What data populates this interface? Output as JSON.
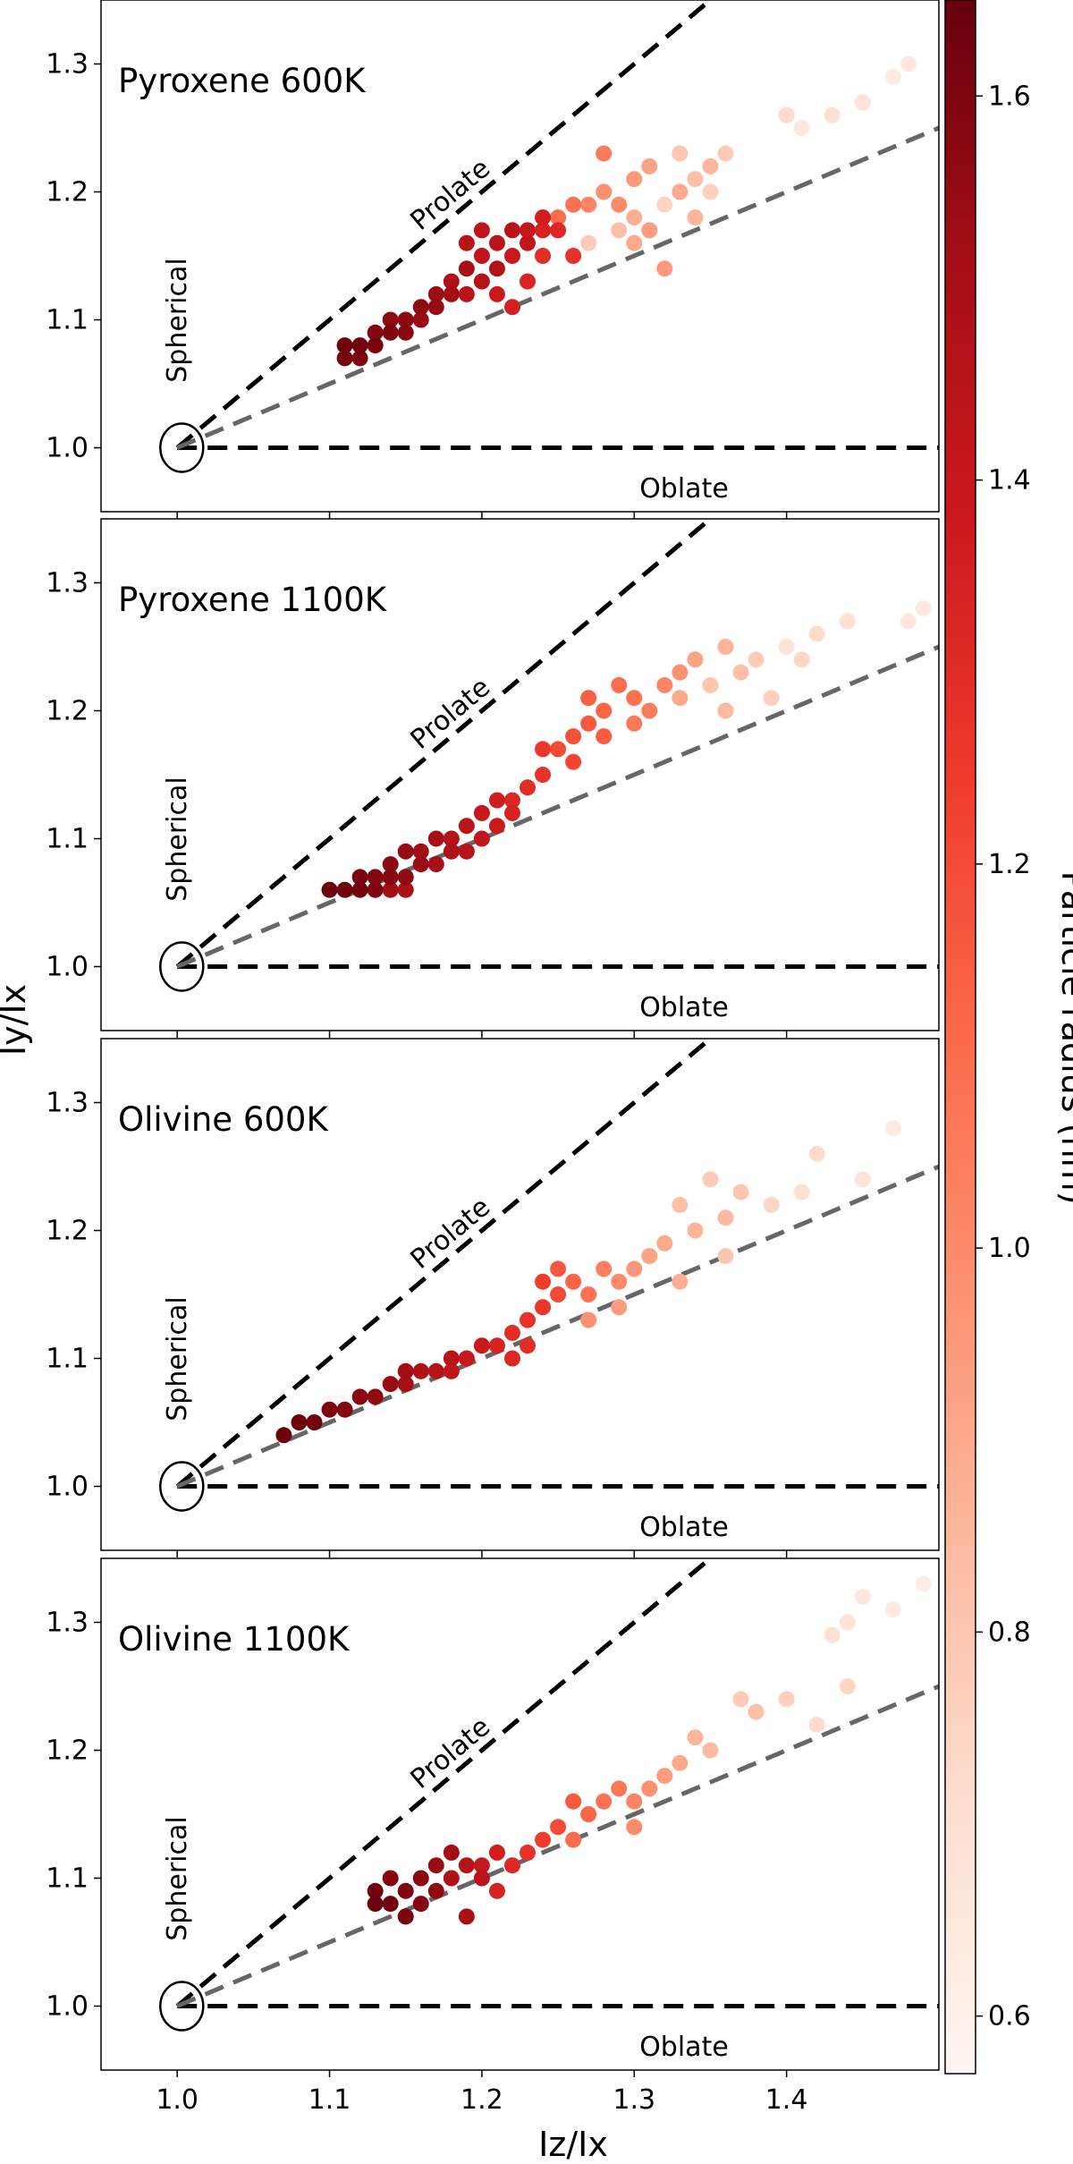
{
  "chart_data": {
    "type": "scatter",
    "xlabel": "Iz/Ix",
    "ylabel": "Iy/Ix",
    "xlim": [
      0.95,
      1.5
    ],
    "ylim": [
      0.95,
      1.35
    ],
    "xticks": [
      "1.0",
      "1.1",
      "1.2",
      "1.3",
      "1.4"
    ],
    "yticks": [
      "1.0",
      "1.1",
      "1.2",
      "1.3"
    ],
    "guide_lines": [
      {
        "name": "prolate-line",
        "slope_type": "Iy=Iz",
        "style": "dashed",
        "color": "#000000"
      },
      {
        "name": "oblate-line",
        "slope_type": "Iy=1",
        "style": "dashed",
        "color": "#000000"
      },
      {
        "name": "middle-line",
        "slope_type": "Iy=(1+Iz)/2",
        "style": "dashed",
        "color": "#666666"
      }
    ],
    "annotations": {
      "prolate": "Prolate",
      "oblate": "Oblate",
      "spherical": "Spherical"
    },
    "colorbar": {
      "label": "Particle radius (nm)",
      "range": [
        0.57,
        1.65
      ],
      "ticks": [
        "0.6",
        "0.8",
        "1.0",
        "1.2",
        "1.4",
        "1.6"
      ],
      "colormap": "Reds"
    },
    "panels": [
      {
        "title": "Pyroxene 600K",
        "points": [
          [
            1.48,
            1.3,
            0.66
          ],
          [
            1.47,
            1.29,
            0.64
          ],
          [
            1.45,
            1.27,
            0.68
          ],
          [
            1.43,
            1.26,
            0.7
          ],
          [
            1.41,
            1.25,
            0.66
          ],
          [
            1.4,
            1.26,
            0.72
          ],
          [
            1.36,
            1.23,
            0.78
          ],
          [
            1.35,
            1.22,
            0.85
          ],
          [
            1.34,
            1.21,
            0.82
          ],
          [
            1.33,
            1.23,
            0.8
          ],
          [
            1.33,
            1.2,
            0.9
          ],
          [
            1.32,
            1.19,
            0.75
          ],
          [
            1.31,
            1.22,
            0.92
          ],
          [
            1.3,
            1.21,
            0.95
          ],
          [
            1.3,
            1.18,
            0.88
          ],
          [
            1.29,
            1.17,
            0.82
          ],
          [
            1.28,
            1.23,
            1.05
          ],
          [
            1.28,
            1.2,
            0.98
          ],
          [
            1.27,
            1.19,
            1.02
          ],
          [
            1.27,
            1.16,
            0.78
          ],
          [
            1.26,
            1.19,
            1.08
          ],
          [
            1.25,
            1.18,
            1.1
          ],
          [
            1.32,
            1.14,
            0.95
          ],
          [
            1.3,
            1.16,
            0.9
          ],
          [
            1.34,
            1.18,
            0.86
          ],
          [
            1.35,
            1.2,
            0.76
          ],
          [
            1.29,
            1.19,
            1.0
          ],
          [
            1.31,
            1.17,
            0.94
          ],
          [
            1.24,
            1.18,
            1.36
          ],
          [
            1.23,
            1.17,
            1.4
          ],
          [
            1.23,
            1.16,
            1.42
          ],
          [
            1.22,
            1.17,
            1.45
          ],
          [
            1.22,
            1.15,
            1.38
          ],
          [
            1.21,
            1.16,
            1.44
          ],
          [
            1.21,
            1.14,
            1.47
          ],
          [
            1.2,
            1.15,
            1.43
          ],
          [
            1.2,
            1.13,
            1.46
          ],
          [
            1.19,
            1.14,
            1.5
          ],
          [
            1.19,
            1.12,
            1.44
          ],
          [
            1.18,
            1.13,
            1.48
          ],
          [
            1.18,
            1.12,
            1.52
          ],
          [
            1.17,
            1.12,
            1.53
          ],
          [
            1.17,
            1.11,
            1.55
          ],
          [
            1.16,
            1.11,
            1.56
          ],
          [
            1.16,
            1.1,
            1.54
          ],
          [
            1.15,
            1.1,
            1.57
          ],
          [
            1.15,
            1.09,
            1.58
          ],
          [
            1.14,
            1.09,
            1.6
          ],
          [
            1.14,
            1.1,
            1.56
          ],
          [
            1.13,
            1.08,
            1.61
          ],
          [
            1.13,
            1.09,
            1.59
          ],
          [
            1.12,
            1.08,
            1.62
          ],
          [
            1.12,
            1.07,
            1.6
          ],
          [
            1.11,
            1.08,
            1.63
          ],
          [
            1.11,
            1.07,
            1.62
          ],
          [
            1.21,
            1.12,
            1.38
          ],
          [
            1.22,
            1.11,
            1.35
          ],
          [
            1.23,
            1.13,
            1.33
          ],
          [
            1.24,
            1.15,
            1.3
          ],
          [
            1.2,
            1.17,
            1.42
          ],
          [
            1.19,
            1.16,
            1.45
          ],
          [
            1.24,
            1.17,
            1.34
          ],
          [
            1.25,
            1.17,
            1.32
          ],
          [
            1.26,
            1.15,
            1.28
          ]
        ]
      },
      {
        "title": "Pyroxene 1100K",
        "points": [
          [
            1.49,
            1.28,
            0.64
          ],
          [
            1.48,
            1.27,
            0.66
          ],
          [
            1.44,
            1.27,
            0.7
          ],
          [
            1.42,
            1.26,
            0.72
          ],
          [
            1.41,
            1.24,
            0.74
          ],
          [
            1.4,
            1.25,
            0.68
          ],
          [
            1.38,
            1.24,
            0.78
          ],
          [
            1.37,
            1.23,
            0.82
          ],
          [
            1.36,
            1.25,
            0.86
          ],
          [
            1.35,
            1.22,
            0.8
          ],
          [
            1.34,
            1.24,
            0.92
          ],
          [
            1.33,
            1.23,
            0.98
          ],
          [
            1.33,
            1.21,
            0.9
          ],
          [
            1.32,
            1.22,
            1.02
          ],
          [
            1.31,
            1.2,
            1.05
          ],
          [
            1.3,
            1.21,
            1.08
          ],
          [
            1.29,
            1.22,
            1.1
          ],
          [
            1.28,
            1.2,
            1.12
          ],
          [
            1.27,
            1.21,
            1.14
          ],
          [
            1.27,
            1.19,
            1.16
          ],
          [
            1.26,
            1.18,
            1.18
          ],
          [
            1.25,
            1.17,
            1.2
          ],
          [
            1.24,
            1.17,
            1.26
          ],
          [
            1.24,
            1.15,
            1.28
          ],
          [
            1.23,
            1.14,
            1.3
          ],
          [
            1.22,
            1.13,
            1.32
          ],
          [
            1.22,
            1.12,
            1.34
          ],
          [
            1.21,
            1.13,
            1.36
          ],
          [
            1.21,
            1.11,
            1.38
          ],
          [
            1.2,
            1.12,
            1.4
          ],
          [
            1.2,
            1.1,
            1.42
          ],
          [
            1.19,
            1.11,
            1.44
          ],
          [
            1.19,
            1.09,
            1.45
          ],
          [
            1.18,
            1.1,
            1.47
          ],
          [
            1.18,
            1.09,
            1.48
          ],
          [
            1.17,
            1.1,
            1.5
          ],
          [
            1.17,
            1.08,
            1.51
          ],
          [
            1.16,
            1.09,
            1.52
          ],
          [
            1.16,
            1.08,
            1.54
          ],
          [
            1.15,
            1.09,
            1.55
          ],
          [
            1.15,
            1.07,
            1.56
          ],
          [
            1.14,
            1.08,
            1.57
          ],
          [
            1.14,
            1.07,
            1.58
          ],
          [
            1.13,
            1.07,
            1.59
          ],
          [
            1.13,
            1.06,
            1.6
          ],
          [
            1.12,
            1.07,
            1.61
          ],
          [
            1.12,
            1.06,
            1.62
          ],
          [
            1.11,
            1.06,
            1.63
          ],
          [
            1.1,
            1.06,
            1.64
          ],
          [
            1.14,
            1.06,
            1.52
          ],
          [
            1.15,
            1.06,
            1.49
          ],
          [
            1.26,
            1.16,
            1.22
          ],
          [
            1.28,
            1.18,
            1.15
          ],
          [
            1.3,
            1.19,
            1.06
          ],
          [
            1.36,
            1.2,
            0.84
          ],
          [
            1.39,
            1.21,
            0.76
          ]
        ]
      },
      {
        "title": "Olivine 600K",
        "points": [
          [
            1.47,
            1.28,
            0.64
          ],
          [
            1.45,
            1.24,
            0.68
          ],
          [
            1.42,
            1.26,
            0.72
          ],
          [
            1.41,
            1.23,
            0.7
          ],
          [
            1.39,
            1.22,
            0.74
          ],
          [
            1.37,
            1.23,
            0.8
          ],
          [
            1.36,
            1.21,
            0.84
          ],
          [
            1.35,
            1.24,
            0.78
          ],
          [
            1.34,
            1.2,
            0.86
          ],
          [
            1.33,
            1.22,
            0.82
          ],
          [
            1.32,
            1.19,
            0.9
          ],
          [
            1.31,
            1.18,
            0.92
          ],
          [
            1.3,
            1.17,
            0.96
          ],
          [
            1.29,
            1.16,
            1.0
          ],
          [
            1.28,
            1.17,
            1.04
          ],
          [
            1.27,
            1.15,
            1.08
          ],
          [
            1.26,
            1.16,
            1.12
          ],
          [
            1.25,
            1.17,
            1.16
          ],
          [
            1.25,
            1.15,
            1.2
          ],
          [
            1.24,
            1.16,
            1.24
          ],
          [
            1.24,
            1.14,
            1.26
          ],
          [
            1.23,
            1.13,
            1.28
          ],
          [
            1.22,
            1.12,
            1.3
          ],
          [
            1.21,
            1.11,
            1.34
          ],
          [
            1.2,
            1.11,
            1.38
          ],
          [
            1.19,
            1.1,
            1.4
          ],
          [
            1.18,
            1.09,
            1.42
          ],
          [
            1.18,
            1.1,
            1.44
          ],
          [
            1.17,
            1.09,
            1.46
          ],
          [
            1.16,
            1.09,
            1.48
          ],
          [
            1.15,
            1.08,
            1.5
          ],
          [
            1.15,
            1.09,
            1.52
          ],
          [
            1.14,
            1.08,
            1.54
          ],
          [
            1.13,
            1.07,
            1.56
          ],
          [
            1.12,
            1.07,
            1.57
          ],
          [
            1.11,
            1.06,
            1.59
          ],
          [
            1.1,
            1.06,
            1.6
          ],
          [
            1.09,
            1.05,
            1.62
          ],
          [
            1.08,
            1.05,
            1.63
          ],
          [
            1.07,
            1.04,
            1.64
          ],
          [
            1.22,
            1.1,
            1.32
          ],
          [
            1.23,
            1.11,
            1.3
          ],
          [
            1.27,
            1.13,
            0.98
          ],
          [
            1.29,
            1.14,
            0.94
          ],
          [
            1.33,
            1.16,
            0.88
          ],
          [
            1.36,
            1.18,
            0.8
          ]
        ]
      },
      {
        "title": "Olivine 1100K",
        "points": [
          [
            1.49,
            1.33,
            0.62
          ],
          [
            1.47,
            1.31,
            0.64
          ],
          [
            1.45,
            1.32,
            0.66
          ],
          [
            1.44,
            1.3,
            0.68
          ],
          [
            1.43,
            1.29,
            0.7
          ],
          [
            1.44,
            1.25,
            0.74
          ],
          [
            1.4,
            1.24,
            0.76
          ],
          [
            1.38,
            1.23,
            0.82
          ],
          [
            1.37,
            1.24,
            0.78
          ],
          [
            1.34,
            1.21,
            0.86
          ],
          [
            1.33,
            1.19,
            0.9
          ],
          [
            1.32,
            1.18,
            0.94
          ],
          [
            1.31,
            1.17,
            0.98
          ],
          [
            1.3,
            1.16,
            1.02
          ],
          [
            1.29,
            1.17,
            1.06
          ],
          [
            1.28,
            1.16,
            1.08
          ],
          [
            1.27,
            1.15,
            1.12
          ],
          [
            1.26,
            1.16,
            1.16
          ],
          [
            1.25,
            1.14,
            1.2
          ],
          [
            1.24,
            1.13,
            1.24
          ],
          [
            1.23,
            1.12,
            1.28
          ],
          [
            1.22,
            1.11,
            1.32
          ],
          [
            1.21,
            1.12,
            1.36
          ],
          [
            1.2,
            1.11,
            1.4
          ],
          [
            1.2,
            1.1,
            1.44
          ],
          [
            1.19,
            1.11,
            1.46
          ],
          [
            1.18,
            1.1,
            1.48
          ],
          [
            1.18,
            1.12,
            1.52
          ],
          [
            1.17,
            1.11,
            1.54
          ],
          [
            1.17,
            1.09,
            1.56
          ],
          [
            1.16,
            1.1,
            1.57
          ],
          [
            1.16,
            1.08,
            1.58
          ],
          [
            1.15,
            1.09,
            1.6
          ],
          [
            1.15,
            1.07,
            1.61
          ],
          [
            1.14,
            1.08,
            1.62
          ],
          [
            1.14,
            1.1,
            1.59
          ],
          [
            1.13,
            1.09,
            1.63
          ],
          [
            1.13,
            1.08,
            1.64
          ],
          [
            1.19,
            1.07,
            1.5
          ],
          [
            1.21,
            1.09,
            1.34
          ],
          [
            1.26,
            1.13,
            1.1
          ],
          [
            1.3,
            1.14,
            1.0
          ],
          [
            1.35,
            1.2,
            0.84
          ],
          [
            1.42,
            1.22,
            0.72
          ]
        ]
      }
    ]
  }
}
